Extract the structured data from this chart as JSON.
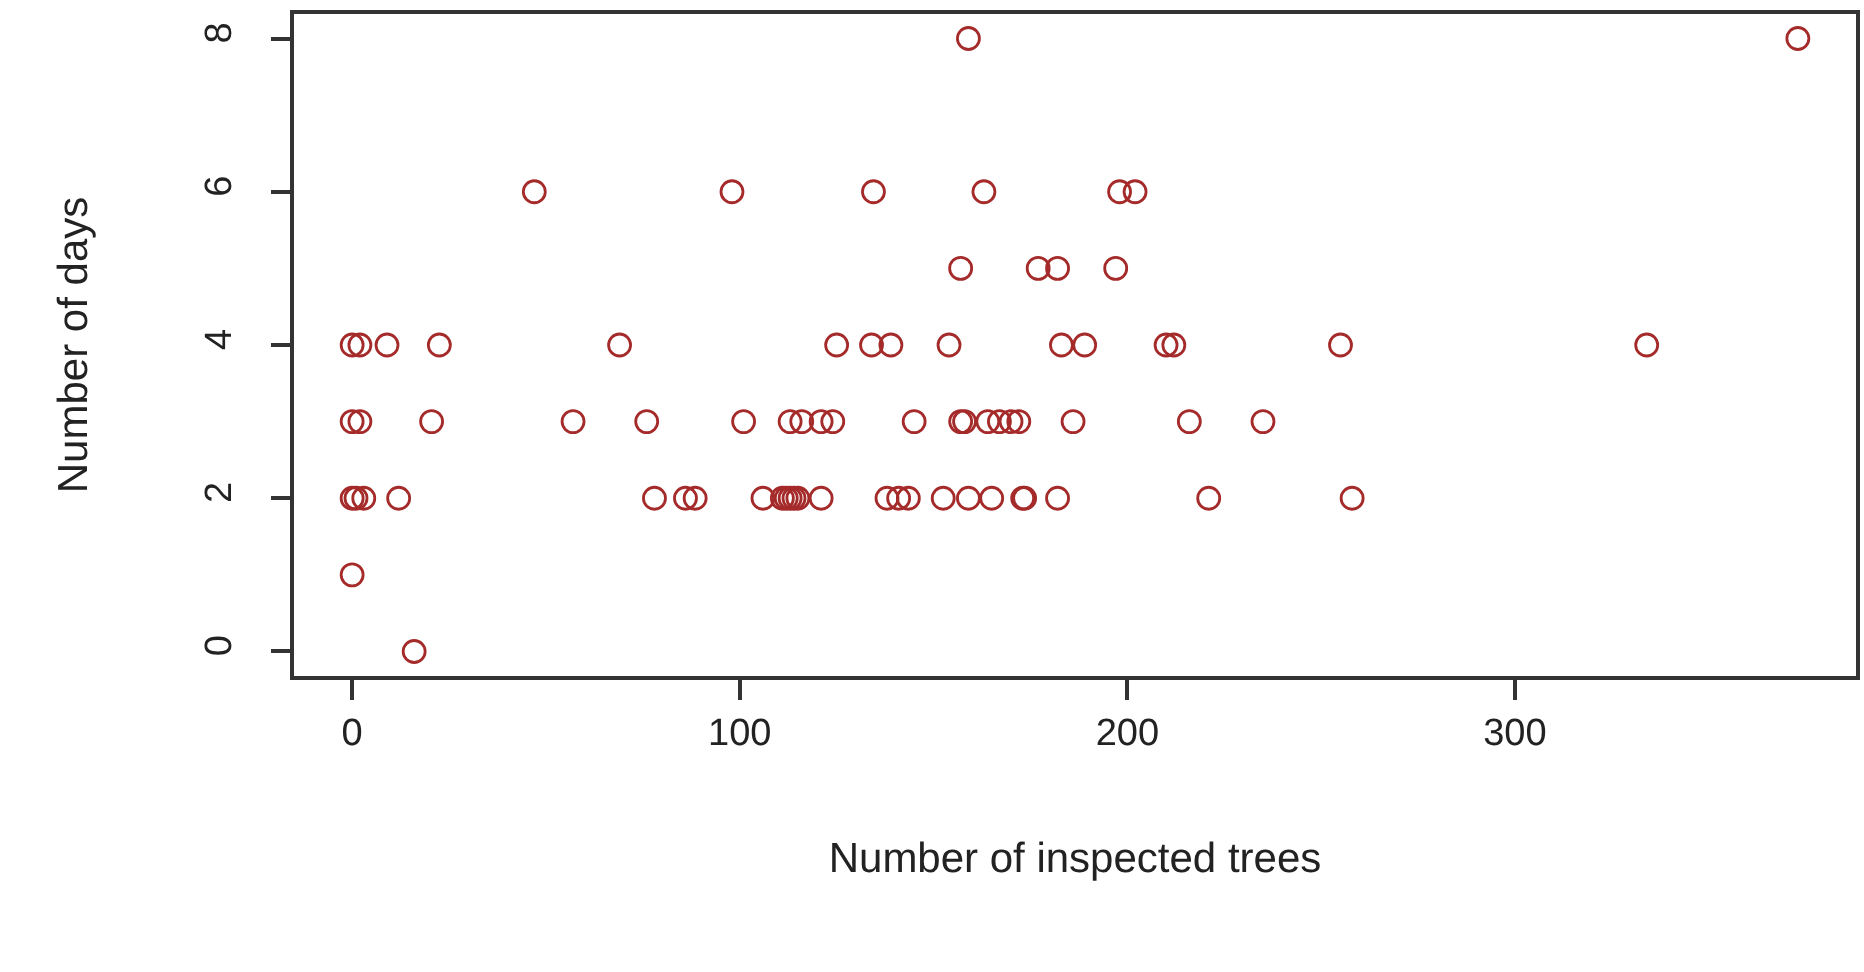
{
  "chart_data": {
    "type": "scatter",
    "xlabel": "Number of inspected trees",
    "ylabel": "Number of days",
    "x": [
      159,
      373,
      47,
      98,
      134.5,
      163,
      198,
      202,
      157,
      177,
      182,
      197,
      0,
      2,
      9,
      22.5,
      69,
      125,
      134,
      139,
      154,
      183,
      189,
      210,
      212,
      255,
      334,
      0,
      2,
      20.5,
      57,
      76,
      101,
      113,
      116,
      121,
      124,
      145,
      157,
      158,
      164,
      167,
      170,
      172,
      186,
      216,
      235,
      0,
      1,
      3,
      12,
      78,
      86,
      88.5,
      106,
      111,
      112,
      113,
      114,
      115,
      121,
      138,
      141,
      143.5,
      152.5,
      159,
      165,
      173,
      173.5,
      182,
      221,
      258,
      0,
      16
    ],
    "values": [
      8,
      8,
      6,
      6,
      6,
      6,
      6,
      6,
      5,
      5,
      5,
      5,
      4,
      4,
      4,
      4,
      4,
      4,
      4,
      4,
      4,
      4,
      4,
      4,
      4,
      4,
      4,
      3,
      3,
      3,
      3,
      3,
      3,
      3,
      3,
      3,
      3,
      3,
      3,
      3,
      3,
      3,
      3,
      3,
      3,
      3,
      3,
      2,
      2,
      2,
      2,
      2,
      2,
      2,
      2,
      2,
      2,
      2,
      2,
      2,
      2,
      2,
      2,
      2,
      2,
      2,
      2,
      2,
      2,
      2,
      2,
      2,
      1,
      0
    ],
    "color": "#a52a2a",
    "marker": "circle",
    "xlim": [
      -15,
      388
    ],
    "ylim": [
      -0.32,
      8.32
    ],
    "xticks": [
      0,
      100,
      200,
      300
    ],
    "yticks": [
      0,
      2,
      4,
      6,
      8
    ]
  }
}
